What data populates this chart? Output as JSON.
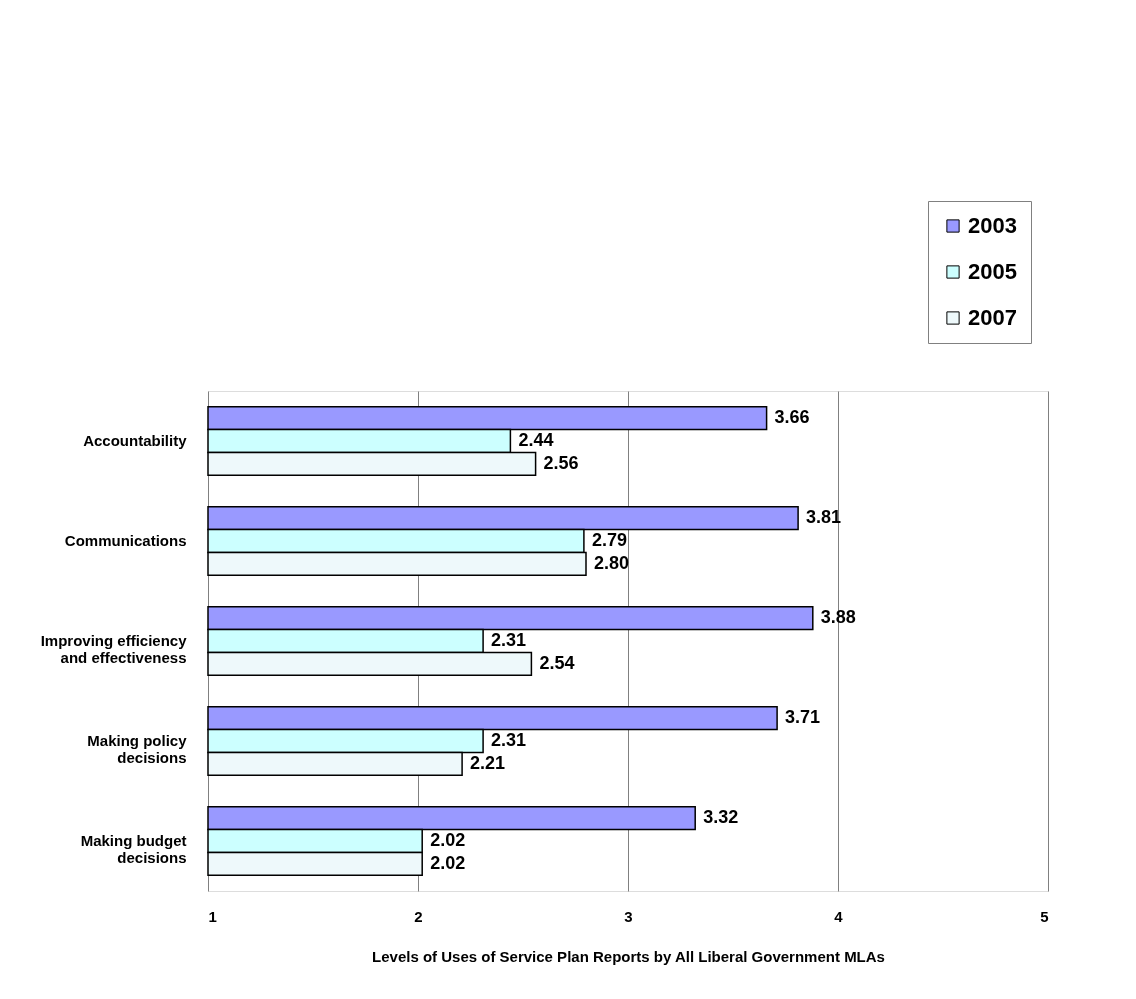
{
  "chart_data": {
    "type": "bar",
    "orientation": "horizontal",
    "categories": [
      "Accountability",
      "Communications",
      "Improving efficiency\nand effectiveness",
      "Making policy\ndecisions",
      "Making budget\ndecisions"
    ],
    "series": [
      {
        "name": "2003",
        "color": "#9999ff",
        "values": [
          3.66,
          3.81,
          3.88,
          3.71,
          3.32
        ],
        "value_labels": [
          "3.66",
          "3.81",
          "3.88",
          "3.71",
          "3.32"
        ]
      },
      {
        "name": "2005",
        "color": "#ccffff",
        "values": [
          2.44,
          2.79,
          2.31,
          2.31,
          2.02
        ],
        "value_labels": [
          "2.44",
          "2.79",
          "2.31",
          "2.31",
          "2.02"
        ]
      },
      {
        "name": "2007",
        "color": "#eef9fb",
        "values": [
          2.56,
          2.8,
          2.54,
          2.21,
          2.02
        ],
        "value_labels": [
          "2.56",
          "2.80",
          "2.54",
          "2.21",
          "2.02"
        ]
      }
    ],
    "xlabel": "Levels of Uses of Service Plan Reports by All Liberal Government MLAs",
    "xlim": [
      1,
      5
    ],
    "xticks": [
      1,
      2,
      3,
      4,
      5
    ],
    "grid": "x",
    "legend": "top right"
  }
}
